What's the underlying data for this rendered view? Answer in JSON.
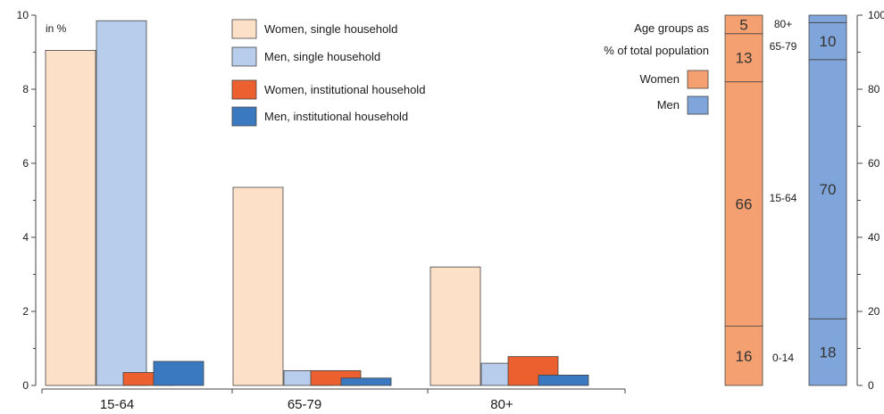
{
  "chart_data": [
    {
      "type": "bar",
      "unit_label": "in %",
      "categories": [
        "15-64",
        "65-79",
        "80+"
      ],
      "ylim": [
        0,
        10
      ],
      "yticks": [
        "0",
        "2",
        "4",
        "6",
        "8",
        "10"
      ],
      "series": [
        {
          "name": "Women, single household",
          "color": "#fde0c8",
          "values": [
            9.05,
            5.35,
            3.2
          ]
        },
        {
          "name": "Men, single household",
          "color": "#b8cdec",
          "values": [
            9.85,
            0.4,
            0.6
          ]
        },
        {
          "name": "Women, institutional household",
          "color": "#ec5f2e",
          "values": [
            0.35,
            0.4,
            0.78
          ]
        },
        {
          "name": "Men, institutional household",
          "color": "#3a78bf",
          "values": [
            0.65,
            0.2,
            0.28
          ]
        }
      ]
    },
    {
      "type": "bar",
      "title_lines": [
        "Age groups as",
        "% of total population"
      ],
      "ylim": [
        0,
        100
      ],
      "yticks": [
        "0",
        "20",
        "40",
        "60",
        "80",
        "100"
      ],
      "age_groups": [
        "0-14",
        "15-64",
        "65-79",
        "80+"
      ],
      "series": [
        {
          "name": "Women",
          "color": "#f5a070",
          "values": [
            16,
            66,
            13,
            5
          ],
          "labels": [
            "16",
            "66",
            "13",
            "5"
          ]
        },
        {
          "name": "Men",
          "color": "#80a5da",
          "values": [
            18,
            70,
            10,
            2
          ],
          "labels": [
            "18",
            "70",
            "10",
            ""
          ]
        }
      ]
    }
  ]
}
